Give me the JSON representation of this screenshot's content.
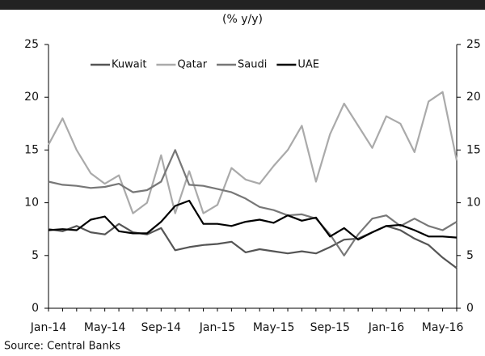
{
  "chart_data": {
    "type": "line",
    "subtitle": "(% y/y)",
    "source": "Source: Central Banks",
    "categories": [
      "Jan-14",
      null,
      null,
      null,
      "May-14",
      null,
      null,
      null,
      "Sep-14",
      null,
      null,
      null,
      "Jan-15",
      null,
      null,
      null,
      "May-15",
      null,
      null,
      null,
      "Sep-15",
      null,
      null,
      null,
      "Jan-16",
      null,
      null,
      null,
      "May-16",
      null
    ],
    "series": [
      {
        "name": "Kuwait",
        "color": "#555555",
        "values": [
          7.5,
          7.3,
          7.8,
          7.2,
          7,
          8,
          7.2,
          7,
          7.6,
          5.5,
          5.8,
          6,
          6.1,
          6.3,
          5.3,
          5.6,
          5.4,
          5.2,
          5.4,
          5.2,
          5.8,
          6.5,
          6.6,
          7.2,
          7.8,
          7.4,
          6.6,
          6,
          4.8,
          3.8
        ]
      },
      {
        "name": "Qatar",
        "color": "#aaaaaa",
        "values": [
          15.5,
          18,
          15,
          12.8,
          11.8,
          12.6,
          9,
          10,
          14.5,
          9,
          13,
          9,
          9.8,
          13.3,
          12.2,
          11.8,
          13.5,
          15,
          17.3,
          12,
          16.5,
          19.4,
          17.3,
          15.2,
          18.2,
          17.5,
          14.8,
          19.6,
          20.5,
          14
        ]
      },
      {
        "name": "Saudi",
        "color": "#777777",
        "values": [
          12,
          11.7,
          11.6,
          11.4,
          11.5,
          11.8,
          11,
          11.2,
          12,
          15,
          11.7,
          11.6,
          11.3,
          11,
          10.4,
          9.6,
          9.3,
          8.8,
          8.9,
          8.5,
          7,
          5,
          7,
          8.5,
          8.8,
          7.8,
          8.5,
          7.8,
          7.4,
          8.2
        ]
      },
      {
        "name": "UAE",
        "color": "#000000",
        "values": [
          7.4,
          7.5,
          7.4,
          8.4,
          8.7,
          7.3,
          7.1,
          7.1,
          8.2,
          9.7,
          10.2,
          8,
          8,
          7.8,
          8.2,
          8.4,
          8.1,
          8.8,
          8.3,
          8.6,
          6.8,
          7.6,
          6.5,
          7.2,
          7.8,
          7.9,
          7.4,
          6.8,
          6.8,
          6.7
        ]
      }
    ],
    "ylim": [
      0,
      25
    ],
    "yticks": [
      0,
      5,
      10,
      15,
      20,
      25
    ],
    "y2lim": [
      0,
      25
    ],
    "y2ticks": [
      0,
      5,
      10,
      15,
      20,
      25
    ],
    "legend": "top"
  }
}
